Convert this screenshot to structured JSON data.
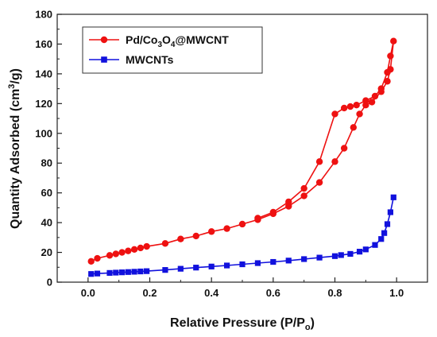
{
  "chart_data": {
    "type": "line",
    "xlabel": "Relative Pressure (P/P",
    "xlabel_sub": "o",
    "xlabel_end": ")",
    "ylabel": "Quantity Adsorbed (cm",
    "ylabel_sup": "3",
    "ylabel_end": "/g)",
    "xlim": [
      -0.1,
      1.1
    ],
    "ylim": [
      0,
      180
    ],
    "xticks": [
      0.0,
      0.2,
      0.4,
      0.6,
      0.8,
      1.0
    ],
    "xtick_labels": [
      "0.0",
      "0.2",
      "0.4",
      "0.6",
      "0.8",
      "1.0"
    ],
    "yticks": [
      0,
      20,
      40,
      60,
      80,
      100,
      120,
      140,
      160,
      180
    ],
    "ytick_labels": [
      "0",
      "20",
      "40",
      "60",
      "80",
      "100",
      "120",
      "140",
      "160",
      "180"
    ],
    "grid": false,
    "legend_position": "top-left",
    "series": [
      {
        "name_parts": [
          "Pd/Co",
          "3",
          "O",
          "4",
          "@MWCNT"
        ],
        "color": "#ee1111",
        "marker": "circle",
        "x": [
          0.01,
          0.03,
          0.07,
          0.09,
          0.11,
          0.13,
          0.15,
          0.17,
          0.19,
          0.25,
          0.3,
          0.35,
          0.4,
          0.45,
          0.5,
          0.55,
          0.6,
          0.65,
          0.7,
          0.75,
          0.8,
          0.83,
          0.86,
          0.88,
          0.9,
          0.92,
          0.95,
          0.97,
          0.98,
          0.99,
          0.98,
          0.97,
          0.95,
          0.93,
          0.9,
          0.87,
          0.85,
          0.83,
          0.8,
          0.75,
          0.7,
          0.65,
          0.6,
          0.55
        ],
        "y": [
          14,
          16,
          18,
          19,
          20,
          21,
          22,
          23,
          24,
          26,
          29,
          31,
          34,
          36,
          39,
          42,
          46,
          51,
          58,
          67,
          81,
          90,
          104,
          113,
          119,
          121,
          128,
          135,
          143,
          162,
          152,
          141,
          130,
          125,
          122,
          119,
          118,
          117,
          113,
          81,
          63,
          54,
          47,
          43
        ]
      },
      {
        "name_parts": [
          "MWCNTs"
        ],
        "color": "#1111dd",
        "marker": "square",
        "x": [
          0.01,
          0.03,
          0.07,
          0.09,
          0.11,
          0.13,
          0.15,
          0.17,
          0.19,
          0.25,
          0.3,
          0.35,
          0.4,
          0.45,
          0.5,
          0.55,
          0.6,
          0.65,
          0.7,
          0.75,
          0.8,
          0.82,
          0.85,
          0.88,
          0.9,
          0.93,
          0.95,
          0.96,
          0.97,
          0.98,
          0.99
        ],
        "y": [
          5.5,
          5.8,
          6.2,
          6.4,
          6.6,
          6.8,
          7.0,
          7.2,
          7.4,
          8.2,
          9.0,
          9.8,
          10.5,
          11.2,
          12.0,
          12.8,
          13.6,
          14.5,
          15.5,
          16.5,
          17.5,
          18.2,
          19.0,
          20.5,
          22.0,
          25.0,
          29.0,
          33.0,
          39.0,
          47.0,
          57.0
        ]
      }
    ]
  }
}
